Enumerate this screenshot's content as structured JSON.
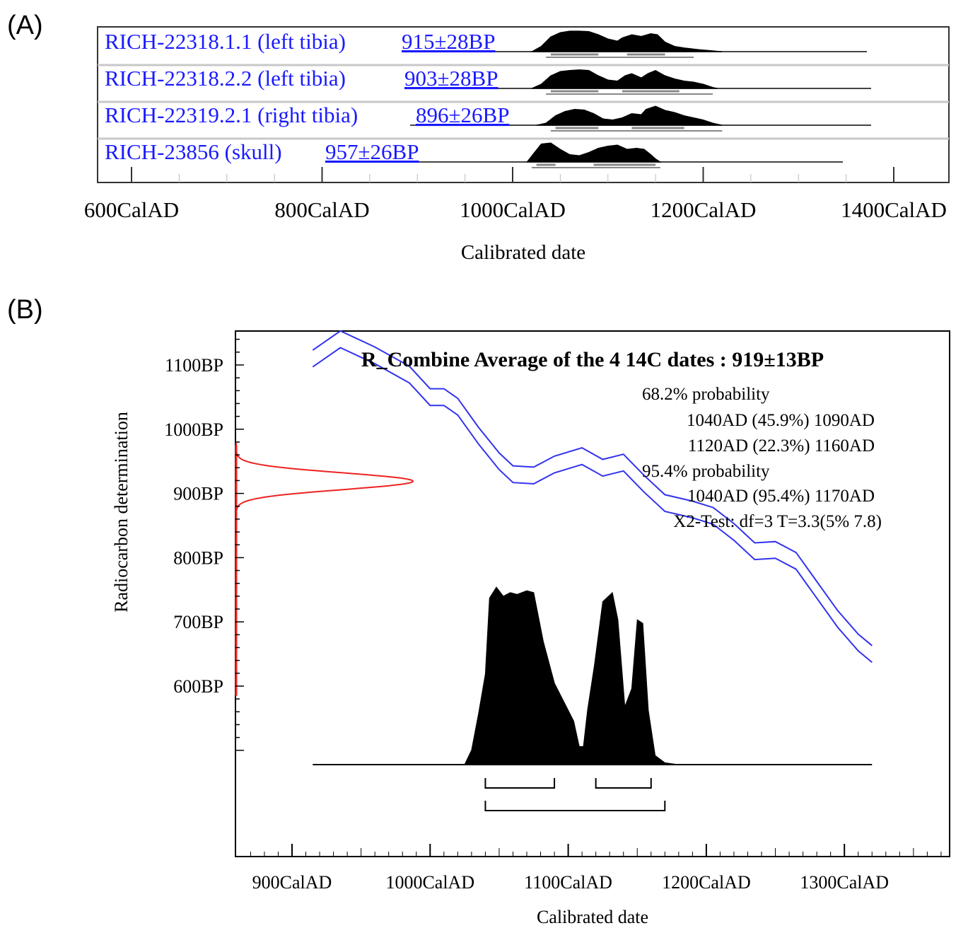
{
  "panel_a": {
    "letter": "(A)"
  },
  "panel_b": {
    "letter": "(B)"
  },
  "chart_data": [
    {
      "type": "area",
      "samples": [
        {
          "label": "RICH-22318.1.1 (left tibia)",
          "age": "915±28BP",
          "range68": [
            [
              1040,
              1090
            ],
            [
              1120,
              1160
            ]
          ],
          "range95": [
            [
              1035,
              1190
            ]
          ],
          "dist": [
            [
              1020,
              0
            ],
            [
              1030,
              0.25
            ],
            [
              1040,
              0.7
            ],
            [
              1050,
              0.9
            ],
            [
              1060,
              0.97
            ],
            [
              1070,
              0.97
            ],
            [
              1080,
              0.95
            ],
            [
              1090,
              0.8
            ],
            [
              1100,
              0.6
            ],
            [
              1110,
              0.5
            ],
            [
              1115,
              0.65
            ],
            [
              1125,
              0.8
            ],
            [
              1135,
              0.72
            ],
            [
              1145,
              0.85
            ],
            [
              1152,
              0.8
            ],
            [
              1160,
              0.45
            ],
            [
              1170,
              0.25
            ],
            [
              1180,
              0.18
            ],
            [
              1195,
              0.1
            ],
            [
              1210,
              0.04
            ],
            [
              1220,
              0
            ]
          ]
        },
        {
          "label": "RICH-22318.2.2 (left tibia)",
          "age": "903±28BP",
          "range68": [
            [
              1040,
              1090
            ],
            [
              1115,
              1175
            ]
          ],
          "range95": [
            [
              1035,
              1210
            ]
          ],
          "dist": [
            [
              1020,
              0
            ],
            [
              1030,
              0.2
            ],
            [
              1040,
              0.6
            ],
            [
              1050,
              0.8
            ],
            [
              1060,
              0.85
            ],
            [
              1070,
              0.88
            ],
            [
              1080,
              0.85
            ],
            [
              1090,
              0.6
            ],
            [
              1100,
              0.4
            ],
            [
              1110,
              0.35
            ],
            [
              1118,
              0.6
            ],
            [
              1125,
              0.7
            ],
            [
              1135,
              0.5
            ],
            [
              1142,
              0.7
            ],
            [
              1150,
              0.85
            ],
            [
              1160,
              0.6
            ],
            [
              1170,
              0.45
            ],
            [
              1180,
              0.35
            ],
            [
              1190,
              0.3
            ],
            [
              1200,
              0.2
            ],
            [
              1210,
              0.05
            ],
            [
              1215,
              0
            ]
          ]
        },
        {
          "label": "RICH-22319.2.1 (right tibia)",
          "age": "896±26BP",
          "range68": [
            [
              1045,
              1090
            ],
            [
              1125,
              1180
            ]
          ],
          "range95": [
            [
              1040,
              1220
            ]
          ],
          "dist": [
            [
              1025,
              0
            ],
            [
              1035,
              0.1
            ],
            [
              1045,
              0.45
            ],
            [
              1055,
              0.65
            ],
            [
              1065,
              0.75
            ],
            [
              1075,
              0.72
            ],
            [
              1085,
              0.55
            ],
            [
              1095,
              0.3
            ],
            [
              1105,
              0.25
            ],
            [
              1115,
              0.35
            ],
            [
              1125,
              0.55
            ],
            [
              1135,
              0.5
            ],
            [
              1140,
              0.75
            ],
            [
              1150,
              0.9
            ],
            [
              1160,
              0.7
            ],
            [
              1170,
              0.6
            ],
            [
              1180,
              0.45
            ],
            [
              1190,
              0.35
            ],
            [
              1200,
              0.25
            ],
            [
              1210,
              0.1
            ],
            [
              1220,
              0
            ]
          ]
        },
        {
          "label": "RICH-23856 (skull)",
          "age": "957±26BP",
          "range68": [
            [
              1025,
              1045
            ],
            [
              1085,
              1150
            ]
          ],
          "range95": [
            [
              1020,
              1155
            ]
          ],
          "dist": [
            [
              1015,
              0
            ],
            [
              1022,
              0.4
            ],
            [
              1030,
              0.85
            ],
            [
              1040,
              0.9
            ],
            [
              1050,
              0.6
            ],
            [
              1060,
              0.35
            ],
            [
              1070,
              0.3
            ],
            [
              1080,
              0.45
            ],
            [
              1090,
              0.65
            ],
            [
              1100,
              0.75
            ],
            [
              1110,
              0.8
            ],
            [
              1120,
              0.6
            ],
            [
              1130,
              0.65
            ],
            [
              1138,
              0.6
            ],
            [
              1145,
              0.35
            ],
            [
              1150,
              0.15
            ],
            [
              1155,
              0
            ]
          ]
        }
      ],
      "xlabel": "Calibrated date",
      "xlim": [
        600,
        1400
      ],
      "xticks": [
        600,
        800,
        1000,
        1200,
        1400
      ],
      "xtick_labels": [
        "600CalAD",
        "800CalAD",
        "1000CalAD",
        "1200CalAD",
        "1400CalAD"
      ]
    },
    {
      "type": "line",
      "title": "R_Combine Average of the 4 14C dates : 919±13BP",
      "annotations": [
        "68.2% probability",
        "1040AD (45.9%) 1090AD",
        "1120AD (22.3%) 1160AD",
        "95.4% probability",
        "1040AD (95.4%) 1170AD",
        "X2-Test: df=3 T=3.3(5% 7.8)"
      ],
      "xlabel": "Calibrated date",
      "ylabel": "Radiocarbon determination",
      "xlim": [
        860,
        1370
      ],
      "ylim": [
        500,
        1150
      ],
      "xticks": [
        900,
        1000,
        1100,
        1200,
        1300
      ],
      "xtick_labels": [
        "900CalAD",
        "1000CalAD",
        "1100CalAD",
        "1200CalAD",
        "1300CalAD"
      ],
      "yticks": [
        1100,
        1000,
        900,
        800,
        700,
        600
      ],
      "ytick_labels": [
        "1100BP",
        "1000BP",
        "900BP",
        "800BP",
        "700BP",
        "600BP"
      ],
      "curve_width": 13,
      "calibration_curve": [
        [
          915,
          1110
        ],
        [
          935,
          1140
        ],
        [
          960,
          1115
        ],
        [
          985,
          1085
        ],
        [
          1000,
          1050
        ],
        [
          1010,
          1050
        ],
        [
          1020,
          1035
        ],
        [
          1035,
          990
        ],
        [
          1050,
          950
        ],
        [
          1060,
          930
        ],
        [
          1075,
          928
        ],
        [
          1090,
          945
        ],
        [
          1110,
          958
        ],
        [
          1125,
          940
        ],
        [
          1140,
          948
        ],
        [
          1155,
          915
        ],
        [
          1170,
          885
        ],
        [
          1190,
          875
        ],
        [
          1205,
          865
        ],
        [
          1220,
          840
        ],
        [
          1235,
          810
        ],
        [
          1250,
          812
        ],
        [
          1265,
          795
        ],
        [
          1280,
          750
        ],
        [
          1295,
          705
        ],
        [
          1310,
          668
        ],
        [
          1320,
          650
        ]
      ],
      "measurement": {
        "mean": 919,
        "sd": 13
      },
      "posterior": [
        [
          1025,
          0
        ],
        [
          1030,
          0.08
        ],
        [
          1035,
          0.28
        ],
        [
          1040,
          0.5
        ],
        [
          1043,
          0.92
        ],
        [
          1048,
          0.98
        ],
        [
          1053,
          0.93
        ],
        [
          1058,
          0.95
        ],
        [
          1063,
          0.94
        ],
        [
          1070,
          0.96
        ],
        [
          1075,
          0.95
        ],
        [
          1082,
          0.68
        ],
        [
          1090,
          0.45
        ],
        [
          1098,
          0.33
        ],
        [
          1104,
          0.24
        ],
        [
          1108,
          0.1
        ],
        [
          1111,
          0.1
        ],
        [
          1114,
          0.3
        ],
        [
          1119,
          0.55
        ],
        [
          1125,
          0.9
        ],
        [
          1132,
          0.95
        ],
        [
          1136,
          0.8
        ],
        [
          1141,
          0.32
        ],
        [
          1146,
          0.42
        ],
        [
          1150,
          0.8
        ],
        [
          1154,
          0.78
        ],
        [
          1158,
          0.3
        ],
        [
          1163,
          0.05
        ],
        [
          1170,
          0.01
        ],
        [
          1175,
          0.005
        ],
        [
          1180,
          0
        ]
      ],
      "posterior_baseline_x": [
        915,
        1320
      ],
      "range68": [
        [
          1040,
          1090
        ],
        [
          1120,
          1160
        ]
      ],
      "range95": [
        [
          1040,
          1170
        ]
      ]
    }
  ]
}
